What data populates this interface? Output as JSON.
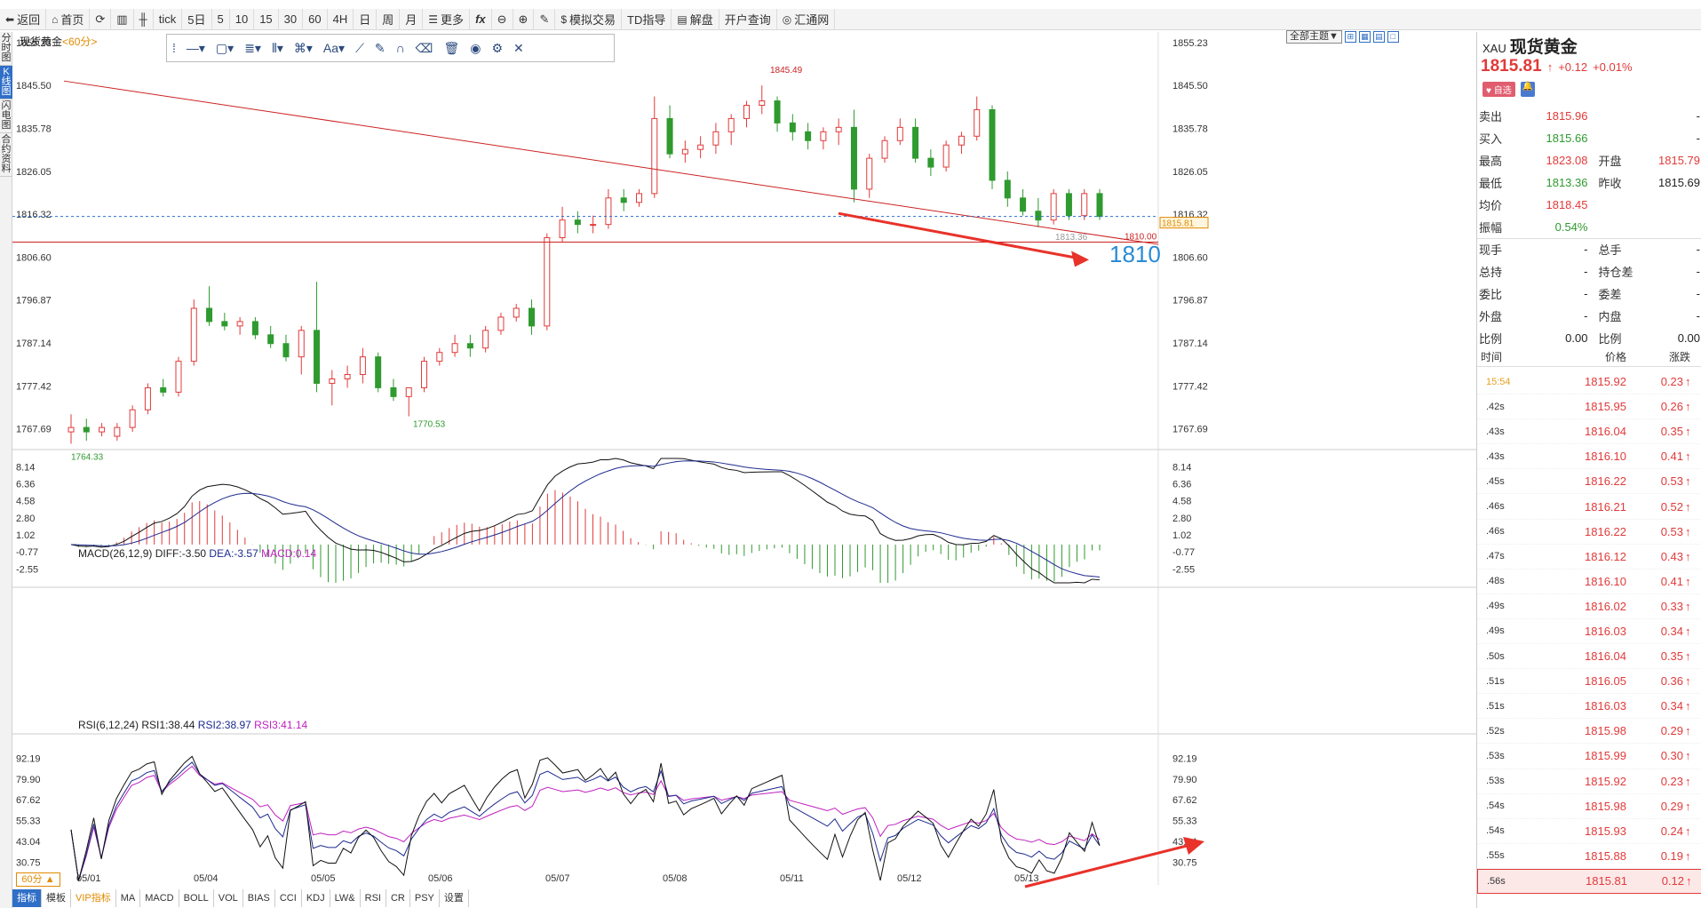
{
  "toolbar": {
    "items": [
      "返回",
      "首页",
      "",
      "",
      "",
      "tick",
      "5日",
      "5",
      "10",
      "15",
      "30",
      "60",
      "4H",
      "日",
      "周",
      "月",
      "更多",
      "fx",
      "",
      "",
      "",
      "模拟交易",
      "TD指导",
      "解盘",
      "开户查询",
      "汇通网"
    ]
  },
  "left_tabs": [
    "分时图",
    "K线图",
    "闪电图",
    "合约资料"
  ],
  "chart": {
    "title": "现货黄金",
    "period": "<60分>",
    "theme_btn": "全部主题▼",
    "period_box": "60分 ▲"
  },
  "macd_label": {
    "name": "MACD(26,12,9)",
    "diff": "DIFF:-3.50",
    "dea": "DEA:-3.57",
    "macd": "MACD:0.14"
  },
  "rsi_label": {
    "name": "RSI(6,12,24)",
    "rsi1": "RSI1:38.44",
    "rsi2": "RSI2:38.97",
    "rsi3": "RSI3:41.14"
  },
  "bottom_tabs": [
    "指标",
    "模板",
    "VIP指标",
    "MA",
    "MACD",
    "BOLL",
    "VOL",
    "BIAS",
    "CCI",
    "KDJ",
    "LW&",
    "RSI",
    "CR",
    "PSY",
    "设置"
  ],
  "annotations": {
    "big_label": "1810",
    "high_label": "1845.49",
    "low_label_left": "1764.33",
    "low_label_mid": "1770.53",
    "low_label_right": "1813.36",
    "hline_label": "1810.00",
    "current_price_label": "1815.81"
  },
  "chart_data": {
    "type": "candlestick",
    "title": "现货黄金",
    "price_axis_ticks": [
      "1855.23",
      "1845.50",
      "1835.78",
      "1826.05",
      "1816.32",
      "1806.60",
      "1796.87",
      "1787.14",
      "1777.42",
      "1767.69"
    ],
    "price_range": [
      1764.0,
      1856.0
    ],
    "dates": [
      "05/01",
      "05/04",
      "05/05",
      "05/06",
      "05/07",
      "05/08",
      "05/11",
      "05/12",
      "05/13"
    ],
    "current_price": 1815.81,
    "horizontal_line": 1810.0,
    "macd_axis_ticks": [
      "8.14",
      "6.36",
      "4.58",
      "2.80",
      "1.02",
      "-0.77",
      "-2.55"
    ],
    "rsi_axis_ticks": [
      "92.19",
      "79.90",
      "67.62",
      "55.33",
      "43.04",
      "30.75"
    ],
    "close_path": [
      1768,
      1766,
      1767,
      1768,
      1766,
      1768,
      1770,
      1772,
      1775,
      1776,
      1778,
      1779,
      1777,
      1780,
      1783,
      1788,
      1795,
      1793,
      1792,
      1791,
      1792,
      1791,
      1790,
      1789,
      1788,
      1786,
      1787,
      1784,
      1782,
      1790,
      1791,
      1792,
      1777,
      1778,
      1777,
      1777,
      1779,
      1778,
      1780,
      1781,
      1780,
      1778,
      1776,
      1775,
      1773,
      1777,
      1780,
      1783,
      1785,
      1784,
      1786,
      1787,
      1788,
      1787,
      1786,
      1788,
      1790,
      1792,
      1794,
      1795,
      1793,
      1796,
      1811,
      1815,
      1814,
      1813,
      1814,
      1815,
      1814,
      1816,
      1819,
      1818,
      1821,
      1819,
      1818,
      1820,
      1821,
      1820,
      1838,
      1830,
      1831,
      1828,
      1830,
      1831,
      1832,
      1833,
      1831,
      1833,
      1835,
      1834,
      1838,
      1839,
      1840,
      1841,
      1842,
      1838,
      1837,
      1836,
      1835,
      1834,
      1833,
      1835,
      1832,
      1834,
      1836,
      1837,
      1832,
      1820,
      1828,
      1829,
      1832,
      1834,
      1836,
      1835,
      1834,
      1830,
      1827,
      1829,
      1831,
      1833,
      1832,
      1834,
      1840,
      1830,
      1824,
      1820,
      1819,
      1817,
      1819,
      1815,
      1814,
      1816,
      1820,
      1818,
      1816,
      1821,
      1815.81
    ],
    "candles": [
      {
        "o": 1767,
        "h": 1771,
        "l": 1764.33,
        "c": 1768
      },
      {
        "o": 1768,
        "h": 1770,
        "l": 1765,
        "c": 1767
      },
      {
        "o": 1767,
        "h": 1769,
        "l": 1766,
        "c": 1768
      },
      {
        "o": 1766,
        "h": 1769,
        "l": 1765,
        "c": 1768
      },
      {
        "o": 1768,
        "h": 1773,
        "l": 1767,
        "c": 1772
      },
      {
        "o": 1772,
        "h": 1778,
        "l": 1771,
        "c": 1777
      },
      {
        "o": 1777,
        "h": 1779,
        "l": 1775,
        "c": 1776
      },
      {
        "o": 1776,
        "h": 1784,
        "l": 1775,
        "c": 1783
      },
      {
        "o": 1783,
        "h": 1797,
        "l": 1782,
        "c": 1795
      },
      {
        "o": 1795,
        "h": 1800,
        "l": 1791,
        "c": 1792
      },
      {
        "o": 1792,
        "h": 1794,
        "l": 1790,
        "c": 1791
      },
      {
        "o": 1791,
        "h": 1793,
        "l": 1789,
        "c": 1792
      },
      {
        "o": 1792,
        "h": 1793,
        "l": 1788,
        "c": 1789
      },
      {
        "o": 1789,
        "h": 1791,
        "l": 1786,
        "c": 1787
      },
      {
        "o": 1787,
        "h": 1789,
        "l": 1783,
        "c": 1784
      },
      {
        "o": 1784,
        "h": 1791,
        "l": 1780,
        "c": 1790
      },
      {
        "o": 1790,
        "h": 1801,
        "l": 1776,
        "c": 1778
      },
      {
        "o": 1778,
        "h": 1781,
        "l": 1773,
        "c": 1779
      },
      {
        "o": 1779,
        "h": 1782,
        "l": 1777,
        "c": 1780
      },
      {
        "o": 1780,
        "h": 1786,
        "l": 1778,
        "c": 1784
      },
      {
        "o": 1784,
        "h": 1785,
        "l": 1776,
        "c": 1777
      },
      {
        "o": 1777,
        "h": 1779,
        "l": 1774,
        "c": 1775
      },
      {
        "o": 1775,
        "h": 1777,
        "l": 1770.53,
        "c": 1777
      },
      {
        "o": 1777,
        "h": 1784,
        "l": 1776,
        "c": 1783
      },
      {
        "o": 1783,
        "h": 1786,
        "l": 1782,
        "c": 1785
      },
      {
        "o": 1785,
        "h": 1789,
        "l": 1784,
        "c": 1787
      },
      {
        "o": 1787,
        "h": 1789,
        "l": 1784,
        "c": 1786
      },
      {
        "o": 1786,
        "h": 1791,
        "l": 1785,
        "c": 1790
      },
      {
        "o": 1790,
        "h": 1794,
        "l": 1789,
        "c": 1793
      },
      {
        "o": 1793,
        "h": 1796,
        "l": 1792,
        "c": 1795
      },
      {
        "o": 1795,
        "h": 1797,
        "l": 1789,
        "c": 1791
      },
      {
        "o": 1791,
        "h": 1812,
        "l": 1790,
        "c": 1811
      },
      {
        "o": 1811,
        "h": 1818,
        "l": 1810,
        "c": 1815
      },
      {
        "o": 1815,
        "h": 1817,
        "l": 1812,
        "c": 1814
      },
      {
        "o": 1814,
        "h": 1816,
        "l": 1812,
        "c": 1814
      },
      {
        "o": 1814,
        "h": 1822,
        "l": 1813,
        "c": 1820
      },
      {
        "o": 1820,
        "h": 1822,
        "l": 1817,
        "c": 1819
      },
      {
        "o": 1819,
        "h": 1822,
        "l": 1818,
        "c": 1821
      },
      {
        "o": 1821,
        "h": 1843,
        "l": 1820,
        "c": 1838
      },
      {
        "o": 1838,
        "h": 1841,
        "l": 1829,
        "c": 1830
      },
      {
        "o": 1830,
        "h": 1833,
        "l": 1828,
        "c": 1831
      },
      {
        "o": 1831,
        "h": 1834,
        "l": 1829,
        "c": 1832
      },
      {
        "o": 1832,
        "h": 1837,
        "l": 1830,
        "c": 1835
      },
      {
        "o": 1835,
        "h": 1839,
        "l": 1832,
        "c": 1838
      },
      {
        "o": 1838,
        "h": 1842,
        "l": 1836,
        "c": 1841
      },
      {
        "o": 1841,
        "h": 1845.49,
        "l": 1839,
        "c": 1842
      },
      {
        "o": 1842,
        "h": 1843,
        "l": 1835,
        "c": 1837
      },
      {
        "o": 1837,
        "h": 1839,
        "l": 1833,
        "c": 1835
      },
      {
        "o": 1835,
        "h": 1837,
        "l": 1831,
        "c": 1833
      },
      {
        "o": 1833,
        "h": 1836,
        "l": 1831,
        "c": 1835
      },
      {
        "o": 1835,
        "h": 1838,
        "l": 1832,
        "c": 1836
      },
      {
        "o": 1836,
        "h": 1840,
        "l": 1819,
        "c": 1822
      },
      {
        "o": 1822,
        "h": 1830,
        "l": 1820,
        "c": 1829
      },
      {
        "o": 1829,
        "h": 1834,
        "l": 1828,
        "c": 1833
      },
      {
        "o": 1833,
        "h": 1838,
        "l": 1832,
        "c": 1836
      },
      {
        "o": 1836,
        "h": 1838,
        "l": 1828,
        "c": 1829
      },
      {
        "o": 1829,
        "h": 1831,
        "l": 1825,
        "c": 1827
      },
      {
        "o": 1827,
        "h": 1833,
        "l": 1826,
        "c": 1832
      },
      {
        "o": 1832,
        "h": 1835,
        "l": 1830,
        "c": 1834
      },
      {
        "o": 1834,
        "h": 1843,
        "l": 1833,
        "c": 1840
      },
      {
        "o": 1840,
        "h": 1841,
        "l": 1822,
        "c": 1824
      },
      {
        "o": 1824,
        "h": 1826,
        "l": 1818,
        "c": 1820
      },
      {
        "o": 1820,
        "h": 1822,
        "l": 1816,
        "c": 1817
      },
      {
        "o": 1817,
        "h": 1820,
        "l": 1813.36,
        "c": 1815
      },
      {
        "o": 1815,
        "h": 1822,
        "l": 1814,
        "c": 1821
      },
      {
        "o": 1821,
        "h": 1822,
        "l": 1815,
        "c": 1816
      },
      {
        "o": 1816,
        "h": 1822,
        "l": 1815,
        "c": 1821
      },
      {
        "o": 1821,
        "h": 1822,
        "l": 1815,
        "c": 1815.81
      }
    ]
  },
  "right_panel": {
    "code": "XAU",
    "name": "现货黄金",
    "price": "1815.81",
    "arrow": "↑",
    "change": "+0.12",
    "change_pct": "+0.01%",
    "fav_label": "自选",
    "rows": [
      {
        "l1": "卖出",
        "v1": "1815.96",
        "l2": "",
        "v2": "-"
      },
      {
        "l1": "买入",
        "v1": "1815.66",
        "l2": "",
        "v2": "-"
      },
      {
        "l1": "最高",
        "v1": "1823.08",
        "l2": "开盘",
        "v2": "1815.79"
      },
      {
        "l1": "最低",
        "v1": "1813.36",
        "l2": "昨收",
        "v2": "1815.69"
      },
      {
        "l1": "均价",
        "v1": "1818.45",
        "l2": "",
        "v2": ""
      },
      {
        "l1": "振幅",
        "v1": "0.54%",
        "l2": "",
        "v2": ""
      },
      {
        "l1": "现手",
        "v1": "-",
        "l2": "总手",
        "v2": "-"
      },
      {
        "l1": "总持",
        "v1": "-",
        "l2": "持仓差",
        "v2": "-"
      },
      {
        "l1": "委比",
        "v1": "-",
        "l2": "委差",
        "v2": "-"
      },
      {
        "l1": "外盘",
        "v1": "-",
        "l2": "内盘",
        "v2": "-"
      },
      {
        "l1": "比例",
        "v1": "0.00",
        "l2": "比例",
        "v2": "0.00"
      }
    ],
    "tick_header": {
      "time": "时间",
      "price": "价格",
      "change": "涨跌"
    },
    "ticks": [
      {
        "t": "15:54",
        "p": "1815.92",
        "c": "0.23"
      },
      {
        "t": ".42s",
        "p": "1815.95",
        "c": "0.26"
      },
      {
        "t": ".43s",
        "p": "1816.04",
        "c": "0.35"
      },
      {
        "t": ".43s",
        "p": "1816.10",
        "c": "0.41"
      },
      {
        "t": ".45s",
        "p": "1816.22",
        "c": "0.53"
      },
      {
        "t": ".46s",
        "p": "1816.21",
        "c": "0.52"
      },
      {
        "t": ".46s",
        "p": "1816.22",
        "c": "0.53"
      },
      {
        "t": ".47s",
        "p": "1816.12",
        "c": "0.43"
      },
      {
        "t": ".48s",
        "p": "1816.10",
        "c": "0.41"
      },
      {
        "t": ".49s",
        "p": "1816.02",
        "c": "0.33"
      },
      {
        "t": ".49s",
        "p": "1816.03",
        "c": "0.34"
      },
      {
        "t": ".50s",
        "p": "1816.04",
        "c": "0.35"
      },
      {
        "t": ".51s",
        "p": "1816.05",
        "c": "0.36"
      },
      {
        "t": ".51s",
        "p": "1816.03",
        "c": "0.34"
      },
      {
        "t": ".52s",
        "p": "1815.98",
        "c": "0.29"
      },
      {
        "t": ".53s",
        "p": "1815.99",
        "c": "0.30"
      },
      {
        "t": ".53s",
        "p": "1815.92",
        "c": "0.23"
      },
      {
        "t": ".54s",
        "p": "1815.98",
        "c": "0.29"
      },
      {
        "t": ".54s",
        "p": "1815.93",
        "c": "0.24"
      },
      {
        "t": ".55s",
        "p": "1815.88",
        "c": "0.19"
      },
      {
        "t": ".56s",
        "p": "1815.81",
        "c": "0.12"
      }
    ]
  },
  "colors": {
    "up": "#e23a3a",
    "down": "#2f9a2f",
    "accent": "#2f6fc7",
    "trend": "#cc2222",
    "big_label": "#2a8ad4"
  }
}
